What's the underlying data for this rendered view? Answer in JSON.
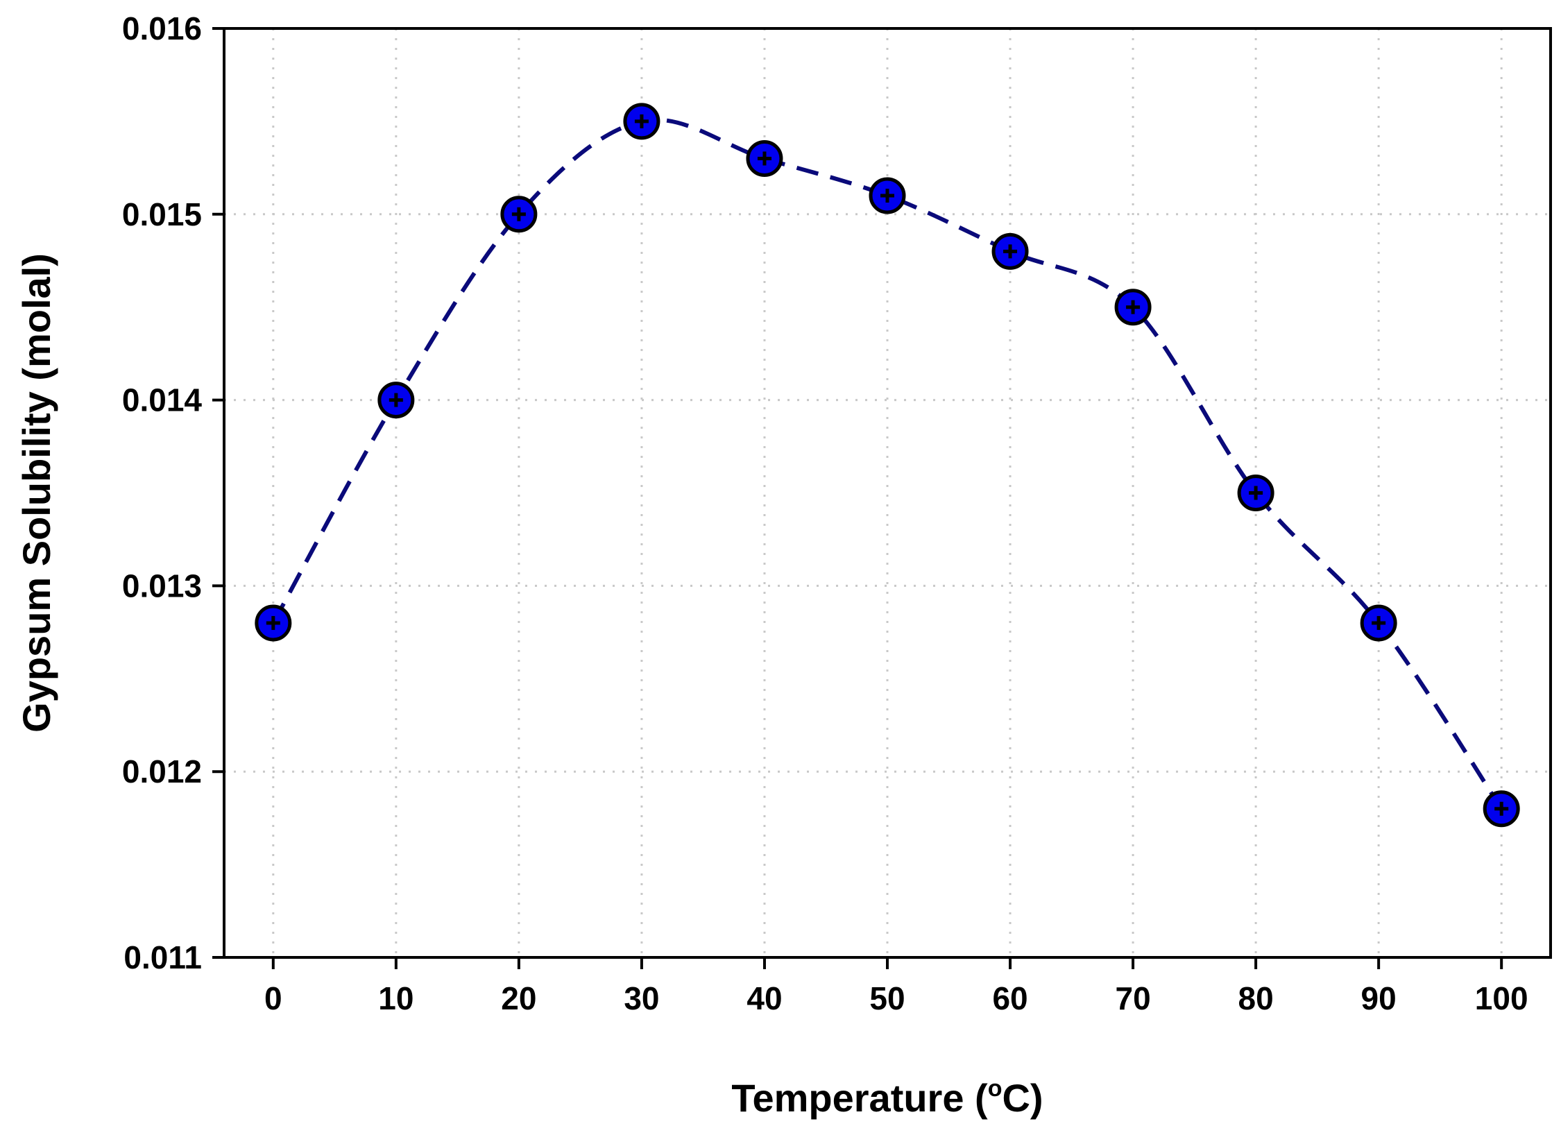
{
  "chart_data": {
    "type": "line",
    "title": "",
    "xlabel": "Temperature (",
    "xlabel_superscript": "o",
    "xlabel_suffix": "C)",
    "ylabel": "Gypsum Solubility (molal)",
    "x": [
      0,
      10,
      20,
      30,
      40,
      50,
      60,
      70,
      80,
      90,
      100
    ],
    "xlim": [
      -4,
      104
    ],
    "ylim": [
      0.011,
      0.016
    ],
    "x_ticks": [
      0,
      10,
      20,
      30,
      40,
      50,
      60,
      70,
      80,
      90,
      100
    ],
    "x_tick_labels": [
      "0",
      "10",
      "20",
      "30",
      "40",
      "50",
      "60",
      "70",
      "80",
      "90",
      "100"
    ],
    "y_ticks": [
      0.011,
      0.012,
      0.013,
      0.014,
      0.015,
      0.016
    ],
    "y_tick_labels": [
      "0.011",
      "0.012",
      "0.013",
      "0.014",
      "0.015",
      "0.016"
    ],
    "grid": true,
    "series": [
      {
        "name": "Gypsum Solubility",
        "values": [
          0.0128,
          0.014,
          0.015,
          0.0155,
          0.0153,
          0.0151,
          0.0148,
          0.0145,
          0.0135,
          0.0128,
          0.0118
        ],
        "line_style": "dashed",
        "line_color": "#0a0a7a",
        "marker": "circle-plus",
        "marker_color": "#0000ee"
      }
    ]
  },
  "colors": {
    "axis": "#000000",
    "grid": "#c8c8c8",
    "line": "#0a0a7a",
    "marker_fill": "#0000ee",
    "marker_edge": "#000000"
  }
}
